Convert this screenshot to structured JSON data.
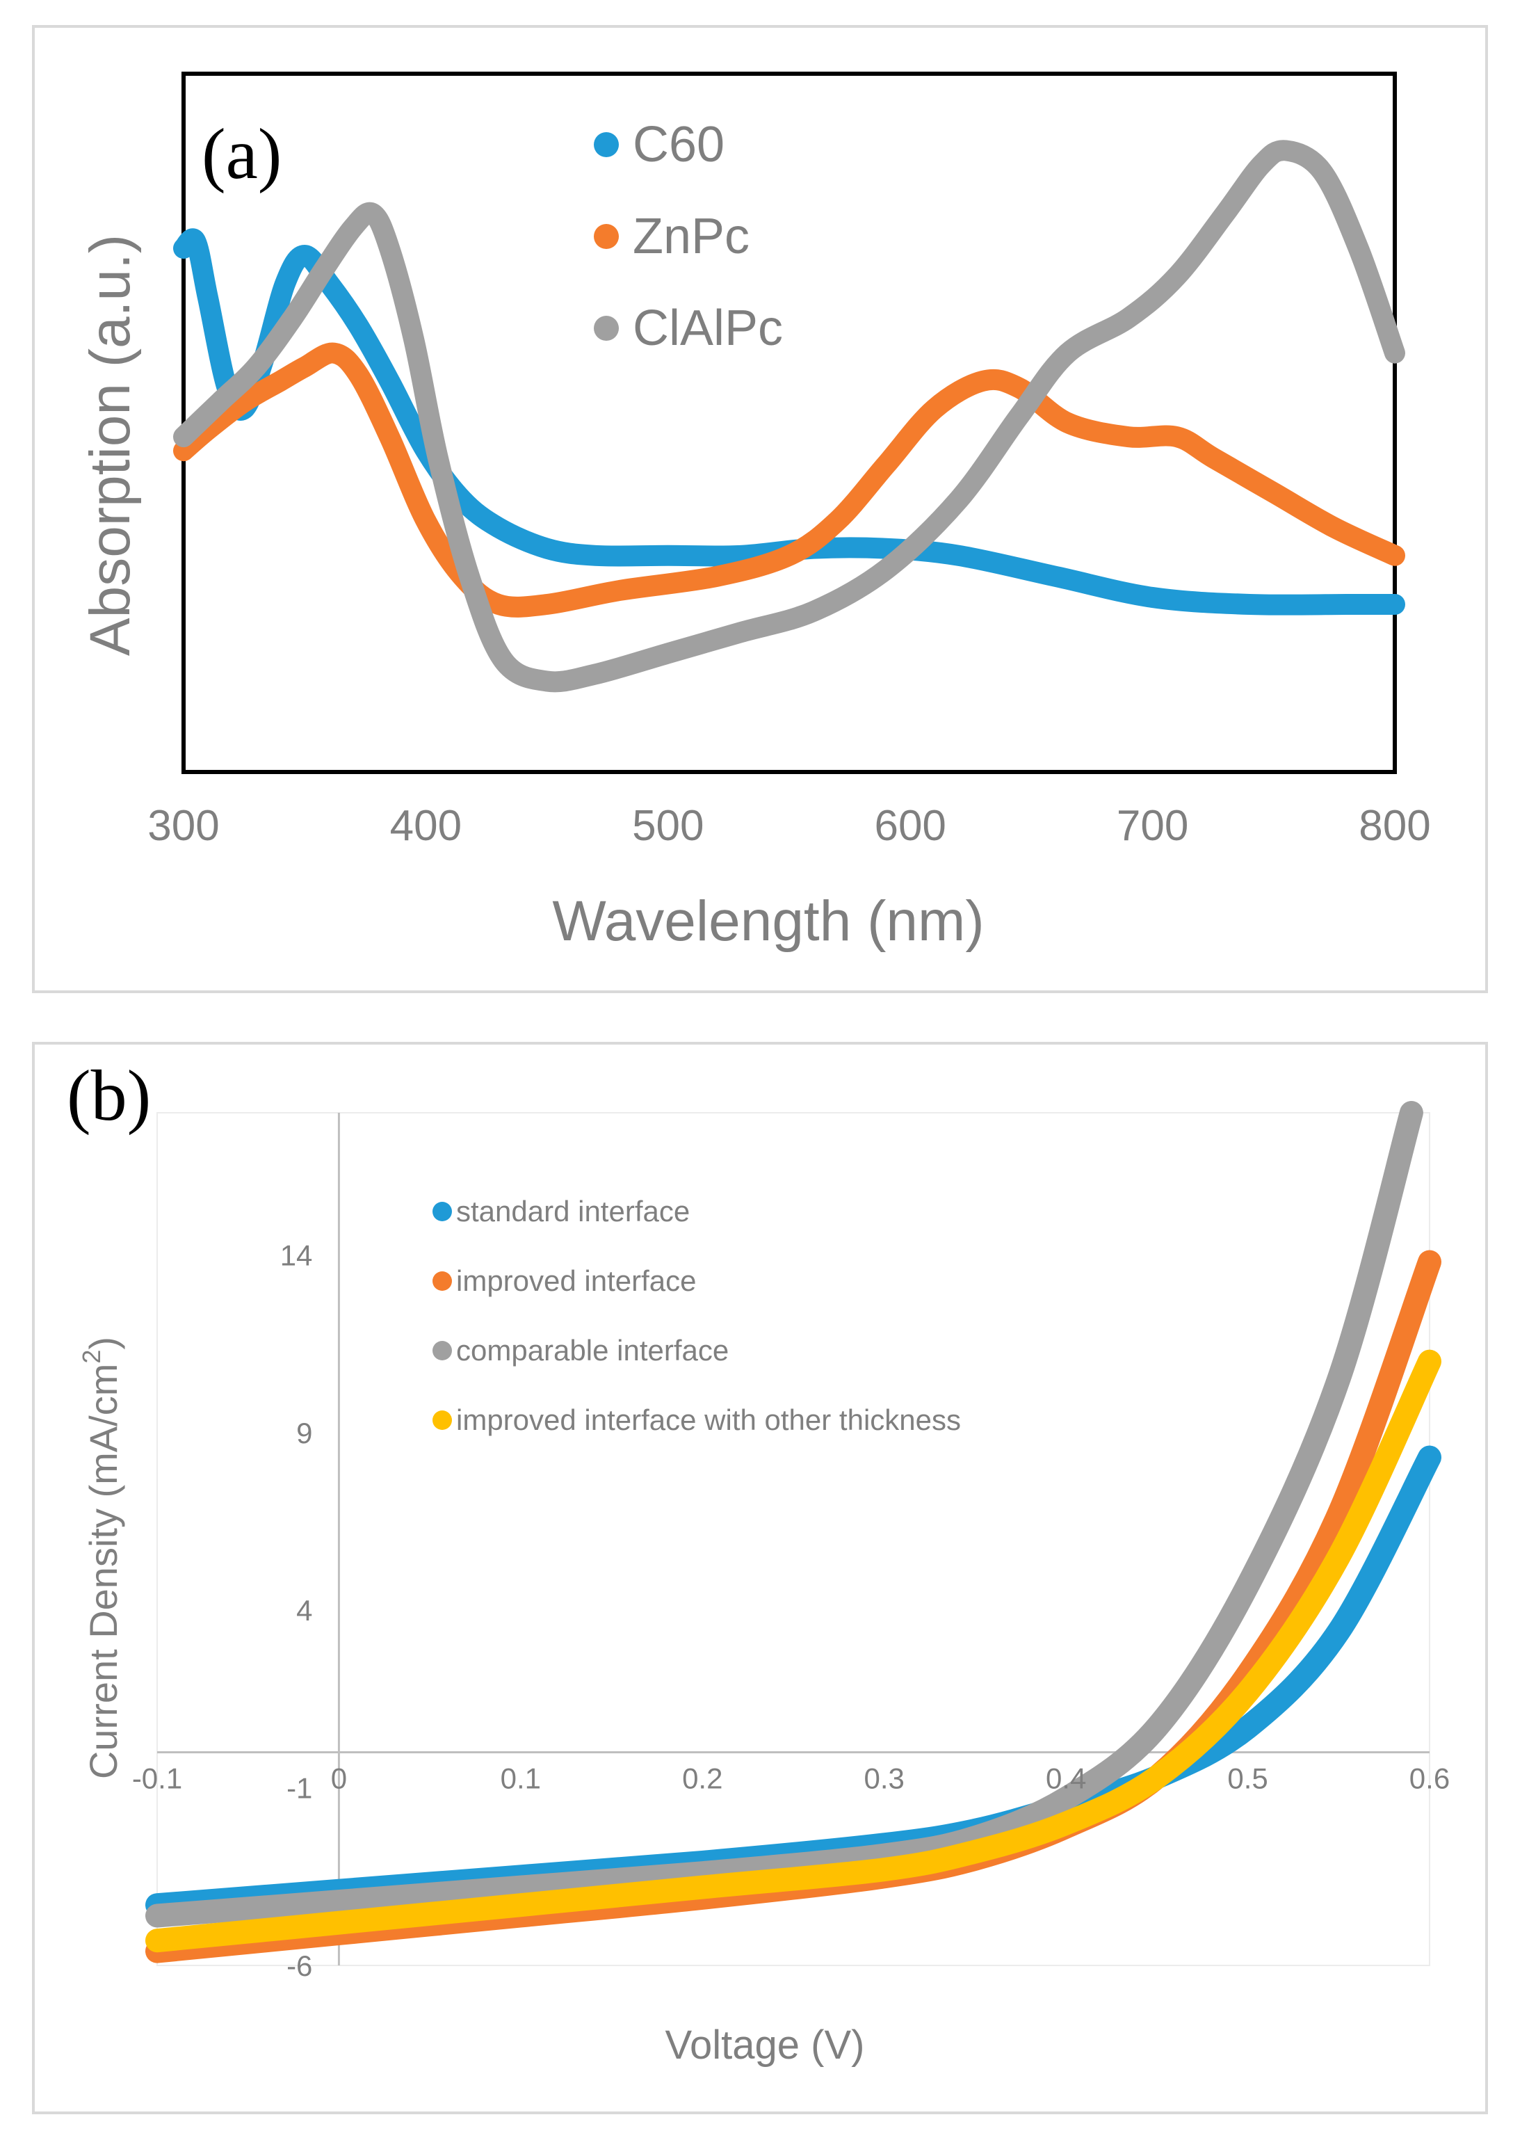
{
  "chart_data": [
    {
      "panel": "(a)",
      "type": "scatter",
      "title": "",
      "xlabel": "Wavelength (nm)",
      "ylabel": "Absorption (a.u.)",
      "xlim": [
        300,
        800
      ],
      "ylim": [
        0,
        1
      ],
      "xticks": [
        300,
        400,
        500,
        600,
        700,
        800
      ],
      "xtick_labels": [
        "300",
        "400",
        "500",
        "600",
        "700",
        "800"
      ],
      "yticks_shown": false,
      "grid": false,
      "legend_position": "top-center",
      "series": [
        {
          "name": "C60",
          "color": "#1f9ad6",
          "points": [
            [
              300,
              0.75
            ],
            [
              305,
              0.76
            ],
            [
              310,
              0.68
            ],
            [
              318,
              0.55
            ],
            [
              325,
              0.52
            ],
            [
              333,
              0.59
            ],
            [
              342,
              0.7
            ],
            [
              350,
              0.74
            ],
            [
              360,
              0.7
            ],
            [
              372,
              0.64
            ],
            [
              385,
              0.56
            ],
            [
              400,
              0.46
            ],
            [
              415,
              0.39
            ],
            [
              430,
              0.35
            ],
            [
              450,
              0.32
            ],
            [
              470,
              0.31
            ],
            [
              500,
              0.31
            ],
            [
              530,
              0.31
            ],
            [
              560,
              0.32
            ],
            [
              590,
              0.32
            ],
            [
              620,
              0.31
            ],
            [
              660,
              0.28
            ],
            [
              700,
              0.25
            ],
            [
              740,
              0.24
            ],
            [
              780,
              0.24
            ],
            [
              800,
              0.24
            ]
          ]
        },
        {
          "name": "ZnPc",
          "color": "#f47c2c",
          "points": [
            [
              300,
              0.46
            ],
            [
              310,
              0.49
            ],
            [
              325,
              0.53
            ],
            [
              340,
              0.56
            ],
            [
              350,
              0.58
            ],
            [
              362,
              0.6
            ],
            [
              372,
              0.57
            ],
            [
              385,
              0.48
            ],
            [
              400,
              0.36
            ],
            [
              415,
              0.28
            ],
            [
              430,
              0.24
            ],
            [
              450,
              0.24
            ],
            [
              480,
              0.26
            ],
            [
              520,
              0.28
            ],
            [
              550,
              0.31
            ],
            [
              570,
              0.36
            ],
            [
              590,
              0.44
            ],
            [
              610,
              0.52
            ],
            [
              630,
              0.56
            ],
            [
              645,
              0.55
            ],
            [
              665,
              0.5
            ],
            [
              690,
              0.48
            ],
            [
              710,
              0.48
            ],
            [
              725,
              0.45
            ],
            [
              750,
              0.4
            ],
            [
              775,
              0.35
            ],
            [
              800,
              0.31
            ]
          ]
        },
        {
          "name": "ClAlPc",
          "color": "#a0a0a0",
          "points": [
            [
              300,
              0.48
            ],
            [
              315,
              0.53
            ],
            [
              330,
              0.58
            ],
            [
              345,
              0.65
            ],
            [
              358,
              0.72
            ],
            [
              370,
              0.78
            ],
            [
              378,
              0.8
            ],
            [
              385,
              0.75
            ],
            [
              395,
              0.62
            ],
            [
              405,
              0.45
            ],
            [
              418,
              0.28
            ],
            [
              432,
              0.16
            ],
            [
              450,
              0.13
            ],
            [
              470,
              0.14
            ],
            [
              500,
              0.17
            ],
            [
              530,
              0.2
            ],
            [
              560,
              0.23
            ],
            [
              590,
              0.29
            ],
            [
              620,
              0.39
            ],
            [
              645,
              0.51
            ],
            [
              665,
              0.6
            ],
            [
              690,
              0.65
            ],
            [
              710,
              0.71
            ],
            [
              730,
              0.8
            ],
            [
              745,
              0.87
            ],
            [
              755,
              0.89
            ],
            [
              770,
              0.86
            ],
            [
              785,
              0.75
            ],
            [
              800,
              0.6
            ]
          ]
        }
      ]
    },
    {
      "panel": "(b)",
      "type": "scatter",
      "title": "",
      "xlabel": "Voltage (V)",
      "ylabel": "Current Density (mA/cm2)",
      "ylabel_parts": {
        "main": "Current Density (mA/cm",
        "superscript": "2",
        "suffix": ")"
      },
      "xlim": [
        -0.1,
        0.6
      ],
      "ylim": [
        -6,
        18
      ],
      "xticks": [
        -0.1,
        0,
        0.1,
        0.2,
        0.3,
        0.4,
        0.5,
        0.6
      ],
      "xtick_labels": [
        "-0.1",
        "0",
        "0.1",
        "0.2",
        "0.3",
        "0.4",
        "0.5",
        "0.6"
      ],
      "yticks": [
        -6,
        -1,
        4,
        9,
        14
      ],
      "ytick_labels": [
        "-6",
        "-1",
        "4",
        "9",
        "14"
      ],
      "grid": false,
      "legend_position": "top-left",
      "series": [
        {
          "name": "standard interface",
          "color": "#1f9ad6",
          "points": [
            [
              -0.1,
              -4.3
            ],
            [
              0,
              -3.9
            ],
            [
              0.1,
              -3.5
            ],
            [
              0.2,
              -3.1
            ],
            [
              0.3,
              -2.6
            ],
            [
              0.35,
              -2.2
            ],
            [
              0.4,
              -1.5
            ],
            [
              0.45,
              -0.7
            ],
            [
              0.5,
              0.7
            ],
            [
              0.55,
              3.4
            ],
            [
              0.6,
              8.3
            ]
          ]
        },
        {
          "name": "improved interface",
          "color": "#f47c2c",
          "points": [
            [
              -0.1,
              -5.6
            ],
            [
              0,
              -5.1
            ],
            [
              0.1,
              -4.6
            ],
            [
              0.2,
              -4.1
            ],
            [
              0.3,
              -3.5
            ],
            [
              0.35,
              -3.0
            ],
            [
              0.4,
              -2.1
            ],
            [
              0.45,
              -0.7
            ],
            [
              0.5,
              2.2
            ],
            [
              0.55,
              6.7
            ],
            [
              0.6,
              13.8
            ]
          ]
        },
        {
          "name": "comparable interface",
          "color": "#a0a0a0",
          "points": [
            [
              -0.1,
              -4.6
            ],
            [
              0,
              -4.2
            ],
            [
              0.1,
              -3.8
            ],
            [
              0.2,
              -3.4
            ],
            [
              0.3,
              -2.9
            ],
            [
              0.35,
              -2.4
            ],
            [
              0.4,
              -1.3
            ],
            [
              0.45,
              0.7
            ],
            [
              0.5,
              4.7
            ],
            [
              0.55,
              10.5
            ],
            [
              0.59,
              18.0
            ]
          ]
        },
        {
          "name": "improved interface with other thickness",
          "color": "#ffc000",
          "points": [
            [
              -0.1,
              -5.3
            ],
            [
              0,
              -4.8
            ],
            [
              0.1,
              -4.3
            ],
            [
              0.2,
              -3.8
            ],
            [
              0.3,
              -3.3
            ],
            [
              0.35,
              -2.8
            ],
            [
              0.4,
              -2.0
            ],
            [
              0.45,
              -0.7
            ],
            [
              0.5,
              1.7
            ],
            [
              0.55,
              5.5
            ],
            [
              0.6,
              11.0
            ]
          ]
        }
      ]
    }
  ]
}
